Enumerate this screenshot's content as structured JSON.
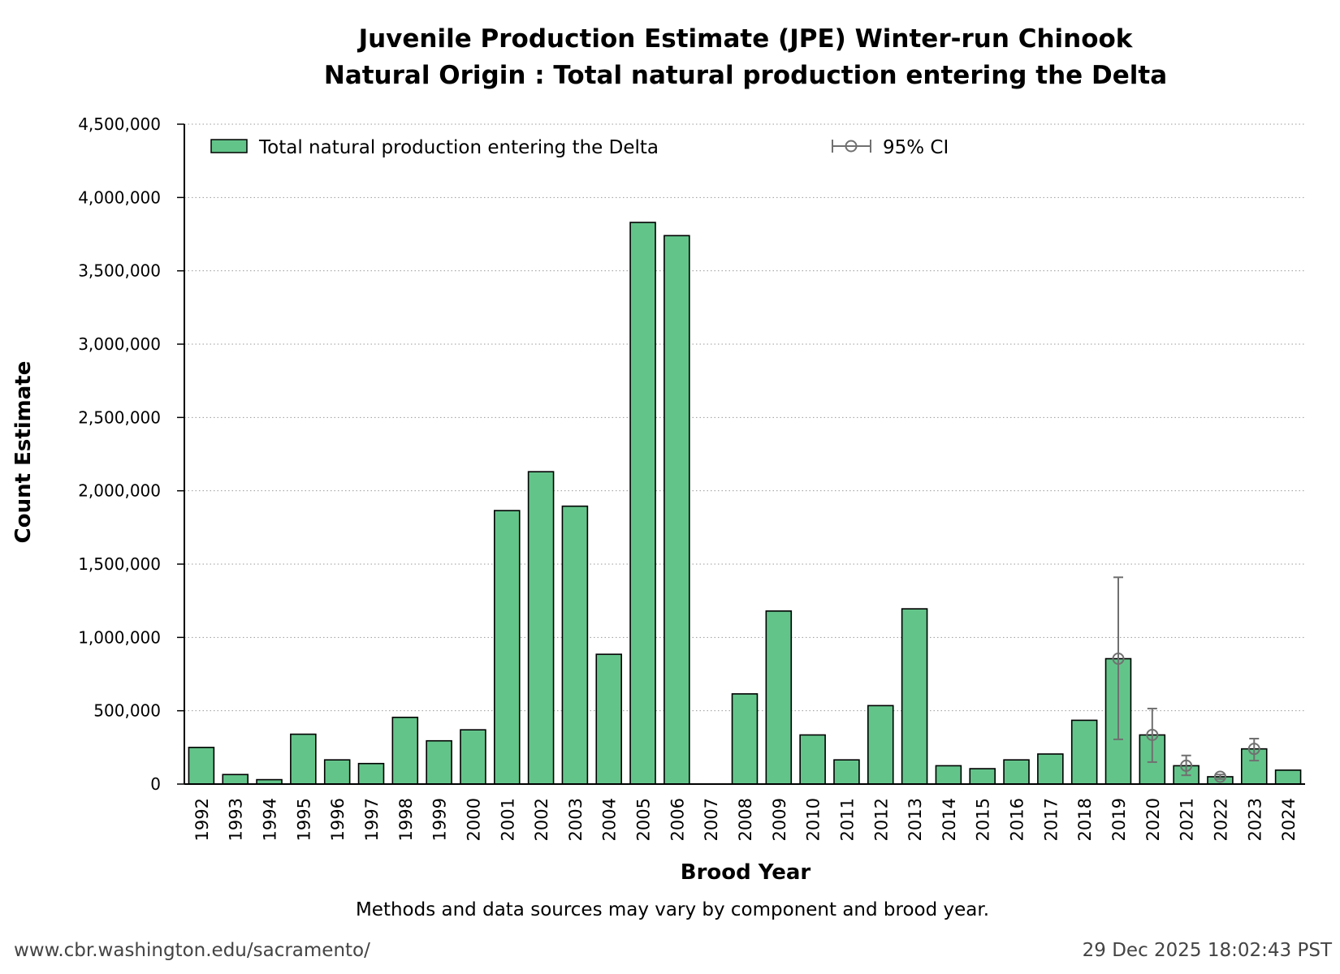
{
  "chart_data": {
    "type": "bar",
    "title_line1": "Juvenile Production Estimate (JPE) Winter-run Chinook",
    "title_line2": "Natural Origin : Total natural production entering the Delta",
    "xlabel": "Brood Year",
    "ylabel": "Count Estimate",
    "ylim": [
      0,
      4500000
    ],
    "yticks": [
      0,
      500000,
      1000000,
      1500000,
      2000000,
      2500000,
      3000000,
      3500000,
      4000000,
      4500000
    ],
    "ytick_labels": [
      "0",
      "500,000",
      "1,000,000",
      "1,500,000",
      "2,000,000",
      "2,500,000",
      "3,000,000",
      "3,500,000",
      "4,000,000",
      "4,500,000"
    ],
    "grid": "horizontal dotted",
    "legend_position": "top",
    "categories": [
      "1992",
      "1993",
      "1994",
      "1995",
      "1996",
      "1997",
      "1998",
      "1999",
      "2000",
      "2001",
      "2002",
      "2003",
      "2004",
      "2005",
      "2006",
      "2007",
      "2008",
      "2009",
      "2010",
      "2011",
      "2012",
      "2013",
      "2014",
      "2015",
      "2016",
      "2017",
      "2018",
      "2019",
      "2020",
      "2021",
      "2022",
      "2023",
      "2024"
    ],
    "series": [
      {
        "name": "Total natural production entering the Delta",
        "color": "#63c48a",
        "values": [
          250000,
          65000,
          30000,
          340000,
          165000,
          140000,
          455000,
          295000,
          370000,
          1865000,
          2130000,
          1895000,
          885000,
          3830000,
          3740000,
          0,
          615000,
          1180000,
          335000,
          165000,
          535000,
          1195000,
          125000,
          105000,
          165000,
          205000,
          435000,
          855000,
          335000,
          125000,
          50000,
          240000,
          95000
        ]
      }
    ],
    "ci": {
      "name": "95% CI",
      "color": "#707070",
      "points": [
        {
          "year": "2019",
          "value": 855000,
          "low": 305000,
          "high": 1410000
        },
        {
          "year": "2020",
          "value": 335000,
          "low": 150000,
          "high": 515000
        },
        {
          "year": "2021",
          "value": 125000,
          "low": 60000,
          "high": 195000
        },
        {
          "year": "2022",
          "value": 50000,
          "low": 35000,
          "high": 65000
        },
        {
          "year": "2023",
          "value": 240000,
          "low": 160000,
          "high": 310000
        }
      ]
    },
    "note": "Methods and data sources may vary by component and brood year."
  },
  "footer": {
    "url": "www.cbr.washington.edu/sacramento/",
    "timestamp": "29 Dec 2025 18:02:43 PST"
  }
}
